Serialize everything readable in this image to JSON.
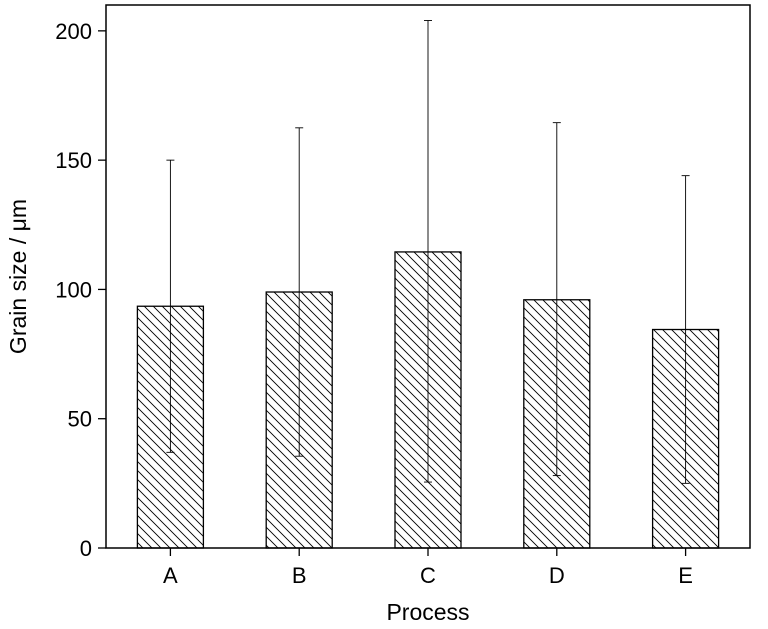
{
  "chart_data": {
    "type": "bar",
    "categories": [
      "A",
      "B",
      "C",
      "D",
      "E"
    ],
    "values": [
      93.5,
      99,
      114.5,
      96,
      84.5
    ],
    "error_upper": [
      150,
      162.5,
      204,
      164.5,
      144
    ],
    "error_lower": [
      37,
      35.5,
      25.5,
      28,
      25
    ],
    "title": "",
    "xlabel": "Process",
    "ylabel": "Grain size / μm",
    "ylim": [
      0,
      210
    ],
    "yticks": [
      0,
      50,
      100,
      150,
      200
    ],
    "grid": false,
    "bar_fill": "hatched",
    "colors": {
      "stroke": "#000000",
      "background": "#ffffff"
    }
  }
}
